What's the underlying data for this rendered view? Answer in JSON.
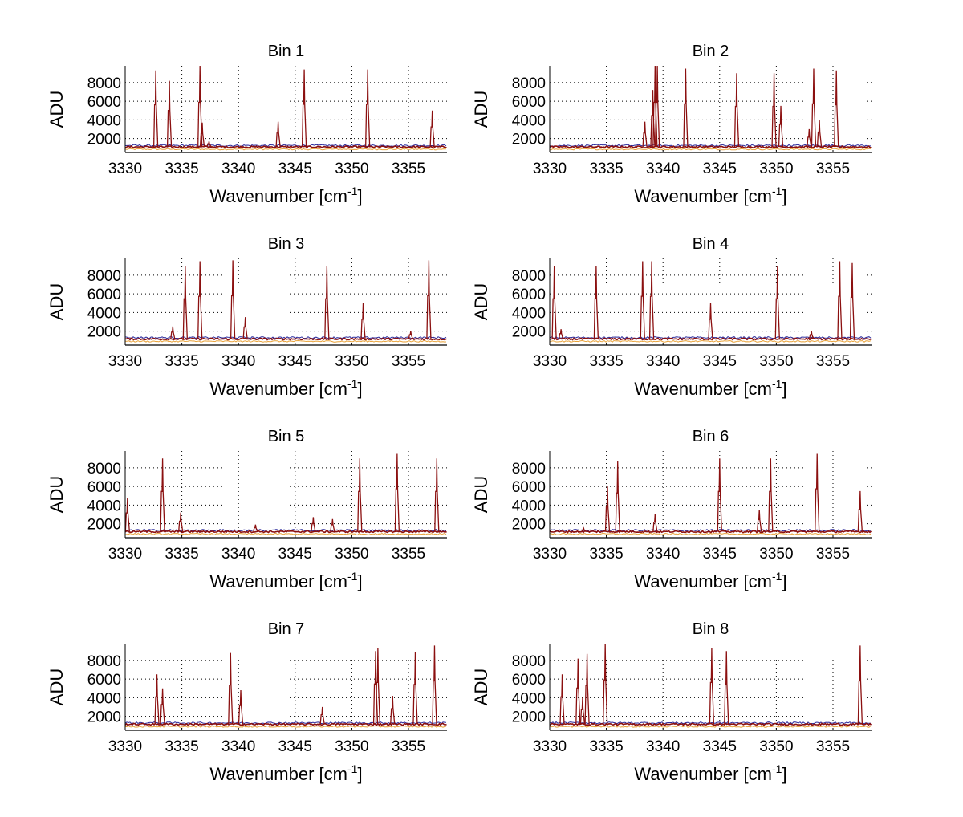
{
  "figure": {
    "colors": {
      "peak": "#8b1010",
      "baseline_blue": "#2b2b9c",
      "baseline_orange": "#e8a23a",
      "grid": "#000000",
      "axis": "#000000"
    }
  },
  "chart_data": [
    {
      "type": "line",
      "title": "Bin 1",
      "xlabel": "Wavenumber [cm",
      "xlabel_sup": "-1",
      "xlabel_end": "]",
      "ylabel": "ADU",
      "xlim": [
        3330,
        3358.4
      ],
      "ylim": [
        500,
        9800
      ],
      "xticks": [
        3330,
        3335,
        3340,
        3345,
        3350,
        3355
      ],
      "yticks": [
        2000,
        4000,
        6000,
        8000
      ],
      "grid": true,
      "baseline": 1100,
      "peaks": [
        [
          3332.7,
          9300
        ],
        [
          3333.9,
          8200
        ],
        [
          3336.6,
          9800
        ],
        [
          3336.8,
          3700
        ],
        [
          3337.4,
          1700
        ],
        [
          3343.5,
          3800
        ],
        [
          3345.8,
          9400
        ],
        [
          3351.4,
          9400
        ],
        [
          3357.1,
          5000
        ]
      ]
    },
    {
      "type": "line",
      "title": "Bin 2",
      "xlabel": "Wavenumber [cm",
      "xlabel_sup": "-1",
      "xlabel_end": "]",
      "ylabel": "ADU",
      "xlim": [
        3330,
        3358.4
      ],
      "ylim": [
        500,
        9800
      ],
      "xticks": [
        3330,
        3335,
        3340,
        3345,
        3350,
        3355
      ],
      "yticks": [
        2000,
        4000,
        6000,
        8000
      ],
      "grid": true,
      "baseline": 1100,
      "peaks": [
        [
          3338.4,
          3800
        ],
        [
          3339.1,
          7200
        ],
        [
          3339.3,
          9800
        ],
        [
          3339.5,
          9800
        ],
        [
          3342.0,
          9500
        ],
        [
          3346.5,
          9000
        ],
        [
          3349.8,
          9000
        ],
        [
          3350.4,
          5500
        ],
        [
          3352.9,
          3000
        ],
        [
          3353.3,
          9500
        ],
        [
          3353.8,
          4000
        ],
        [
          3355.3,
          9300
        ]
      ]
    },
    {
      "type": "line",
      "title": "Bin 3",
      "xlabel": "Wavenumber [cm",
      "xlabel_sup": "-1",
      "xlabel_end": "]",
      "ylabel": "ADU",
      "xlim": [
        3330,
        3358.4
      ],
      "ylim": [
        500,
        9800
      ],
      "xticks": [
        3330,
        3335,
        3340,
        3345,
        3350,
        3355
      ],
      "yticks": [
        2000,
        4000,
        6000,
        8000
      ],
      "grid": true,
      "baseline": 1150,
      "peaks": [
        [
          3334.2,
          2500
        ],
        [
          3335.3,
          9000
        ],
        [
          3336.6,
          9500
        ],
        [
          3339.5,
          9600
        ],
        [
          3340.6,
          3500
        ],
        [
          3347.8,
          9000
        ],
        [
          3351.0,
          5000
        ],
        [
          3355.2,
          2000
        ],
        [
          3356.8,
          9600
        ]
      ]
    },
    {
      "type": "line",
      "title": "Bin 4",
      "xlabel": "Wavenumber [cm",
      "xlabel_sup": "-1",
      "xlabel_end": "]",
      "ylabel": "ADU",
      "xlim": [
        3330,
        3358.4
      ],
      "ylim": [
        500,
        9800
      ],
      "xticks": [
        3330,
        3335,
        3340,
        3345,
        3350,
        3355
      ],
      "yticks": [
        2000,
        4000,
        6000,
        8000
      ],
      "grid": true,
      "baseline": 1150,
      "peaks": [
        [
          3330.4,
          9000
        ],
        [
          3331.0,
          2200
        ],
        [
          3334.1,
          9000
        ],
        [
          3338.2,
          9500
        ],
        [
          3339.0,
          9500
        ],
        [
          3344.2,
          5000
        ],
        [
          3350.1,
          9000
        ],
        [
          3353.1,
          2000
        ],
        [
          3355.6,
          9500
        ],
        [
          3356.7,
          9300
        ]
      ]
    },
    {
      "type": "line",
      "title": "Bin 5",
      "xlabel": "Wavenumber [cm",
      "xlabel_sup": "-1",
      "xlabel_end": "]",
      "ylabel": "ADU",
      "xlim": [
        3330,
        3358.4
      ],
      "ylim": [
        500,
        9800
      ],
      "xticks": [
        3330,
        3335,
        3340,
        3345,
        3350,
        3355
      ],
      "yticks": [
        2000,
        4000,
        6000,
        8000
      ],
      "grid": true,
      "baseline": 1150,
      "peaks": [
        [
          3330.2,
          4800
        ],
        [
          3333.3,
          9000
        ],
        [
          3334.9,
          3200
        ],
        [
          3341.5,
          1900
        ],
        [
          3346.6,
          2700
        ],
        [
          3348.3,
          2500
        ],
        [
          3350.7,
          9000
        ],
        [
          3354.0,
          9500
        ],
        [
          3357.5,
          9000
        ]
      ]
    },
    {
      "type": "line",
      "title": "Bin 6",
      "xlabel": "Wavenumber [cm",
      "xlabel_sup": "-1",
      "xlabel_end": "]",
      "ylabel": "ADU",
      "xlim": [
        3330,
        3358.4
      ],
      "ylim": [
        500,
        9800
      ],
      "xticks": [
        3330,
        3335,
        3340,
        3345,
        3350,
        3355
      ],
      "yticks": [
        2000,
        4000,
        6000,
        8000
      ],
      "grid": true,
      "baseline": 1150,
      "peaks": [
        [
          3333.0,
          1500
        ],
        [
          3335.1,
          6000
        ],
        [
          3336.0,
          8700
        ],
        [
          3339.3,
          3000
        ],
        [
          3345.0,
          9000
        ],
        [
          3348.5,
          3500
        ],
        [
          3349.5,
          9000
        ],
        [
          3353.6,
          9500
        ],
        [
          3357.4,
          5500
        ]
      ]
    },
    {
      "type": "line",
      "title": "Bin 7",
      "xlabel": "Wavenumber [cm",
      "xlabel_sup": "-1",
      "xlabel_end": "]",
      "ylabel": "ADU",
      "xlim": [
        3330,
        3358.4
      ],
      "ylim": [
        500,
        9800
      ],
      "xticks": [
        3330,
        3335,
        3340,
        3345,
        3350,
        3355
      ],
      "yticks": [
        2000,
        4000,
        6000,
        8000
      ],
      "grid": true,
      "baseline": 1150,
      "peaks": [
        [
          3332.8,
          6500
        ],
        [
          3333.3,
          5000
        ],
        [
          3339.3,
          8800
        ],
        [
          3340.2,
          4800
        ],
        [
          3347.4,
          3000
        ],
        [
          3352.1,
          9000
        ],
        [
          3352.3,
          9300
        ],
        [
          3353.6,
          4200
        ],
        [
          3355.6,
          8900
        ],
        [
          3357.3,
          9600
        ]
      ]
    },
    {
      "type": "line",
      "title": "Bin 8",
      "xlabel": "Wavenumber [cm",
      "xlabel_sup": "-1",
      "xlabel_end": "]",
      "ylabel": "ADU",
      "xlim": [
        3330,
        3358.4
      ],
      "ylim": [
        500,
        9800
      ],
      "xticks": [
        3330,
        3335,
        3340,
        3345,
        3350,
        3355
      ],
      "yticks": [
        2000,
        4000,
        6000,
        8000
      ],
      "grid": true,
      "baseline": 1150,
      "peaks": [
        [
          3331.1,
          6500
        ],
        [
          3332.5,
          8200
        ],
        [
          3332.9,
          4000
        ],
        [
          3333.3,
          8700
        ],
        [
          3334.9,
          9800
        ],
        [
          3344.3,
          9300
        ],
        [
          3345.6,
          9000
        ],
        [
          3357.4,
          9600
        ]
      ]
    }
  ]
}
